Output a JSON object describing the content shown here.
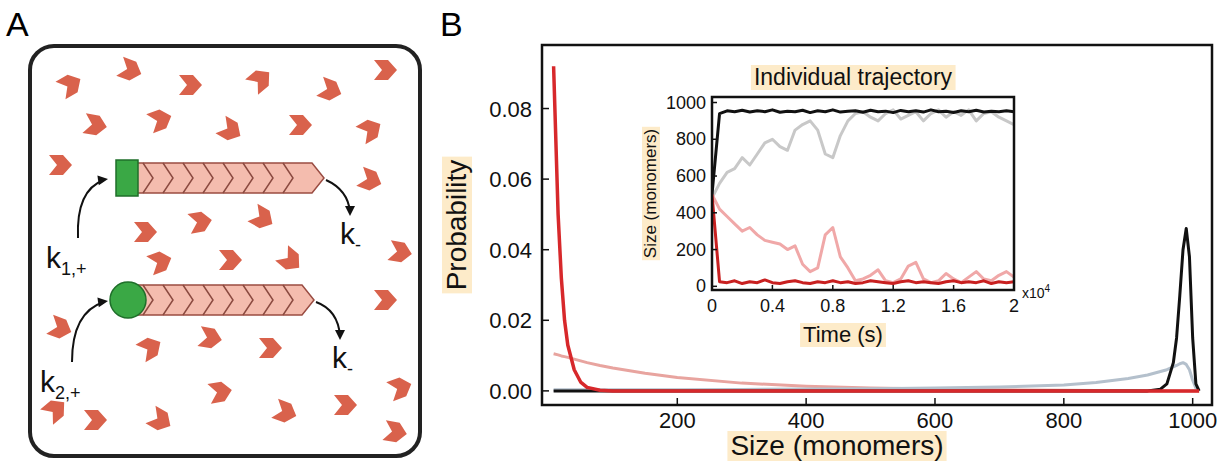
{
  "panel_a": {
    "letter": "A",
    "rates": [
      {
        "base": "k",
        "sub": "1,+"
      },
      {
        "base": "k",
        "sub": "-"
      },
      {
        "base": "k",
        "sub": "2,+"
      },
      {
        "base": "k",
        "sub": "-"
      }
    ]
  },
  "chart_data": [
    {
      "type": "line",
      "panel_label": "B",
      "x_label": "Size (monomers)",
      "y_label": "Probability",
      "x": [
        8,
        15,
        20,
        25,
        30,
        40,
        50,
        60,
        80,
        100,
        150,
        200,
        300,
        400,
        500,
        600,
        700,
        800,
        850,
        900,
        930,
        950,
        960,
        970,
        975,
        980,
        985,
        990,
        995,
        1000,
        1005,
        1010
      ],
      "series": [
        {
          "color": "#e8a49f",
          "values": [
            0.0105,
            0.0102,
            0.0099,
            0.0097,
            0.0095,
            0.009,
            0.0085,
            0.008,
            0.0072,
            0.0065,
            0.005,
            0.0038,
            0.0022,
            0.0013,
            0.0008,
            0.0005,
            0.0003,
            0.0002,
            0.0001,
            0.0001,
            0,
            0,
            0,
            0,
            0,
            0,
            0,
            0,
            0,
            0,
            0,
            0
          ]
        },
        {
          "color": "#b4c0cc",
          "values": [
            0.0003,
            0.0003,
            0.0003,
            0.0003,
            0.0003,
            0.0003,
            0.0003,
            0.0003,
            0.0003,
            0.0003,
            0.0003,
            0.0003,
            0.0004,
            0.0005,
            0.0006,
            0.0008,
            0.0011,
            0.0017,
            0.0024,
            0.0035,
            0.0045,
            0.0055,
            0.006,
            0.0068,
            0.0072,
            0.0077,
            0.008,
            0.0075,
            0.006,
            0.003,
            0.0008,
            0
          ]
        },
        {
          "color": "#111111",
          "values": [
            0,
            0,
            0,
            0,
            0,
            0,
            0,
            0,
            0,
            0,
            0,
            0,
            0,
            0,
            0,
            0,
            0,
            0,
            0,
            0,
            0,
            0.0005,
            0.002,
            0.008,
            0.015,
            0.027,
            0.04,
            0.046,
            0.038,
            0.015,
            0.002,
            0
          ]
        },
        {
          "color": "#d7282b",
          "values": [
            0.092,
            0.05,
            0.032,
            0.02,
            0.013,
            0.006,
            0.0025,
            0.001,
            0.0002,
            0,
            0,
            0,
            0,
            0,
            0,
            0,
            0,
            0,
            0,
            0,
            0,
            0,
            0,
            0,
            0,
            0,
            0,
            0,
            0,
            0,
            0,
            0
          ]
        }
      ],
      "xlim": [
        -10,
        1030
      ],
      "ylim": [
        -0.004,
        0.098
      ],
      "xticks": [
        200,
        400,
        600,
        800,
        1000
      ],
      "yticks": [
        {
          "value": 0,
          "label": "0.00"
        },
        {
          "value": 0.02,
          "label": "0.02"
        },
        {
          "value": 0.04,
          "label": "0.04"
        },
        {
          "value": 0.06,
          "label": "0.06"
        },
        {
          "value": 0.08,
          "label": "0.08"
        }
      ]
    },
    {
      "type": "line",
      "title": "Individual trajectory",
      "x_label": "Time (s)",
      "y_label": "Size (monomers)",
      "x_scale": {
        "text": "x10",
        "superscript": "4"
      },
      "x": [
        0,
        0.05,
        0.1,
        0.15,
        0.2,
        0.25,
        0.3,
        0.35,
        0.4,
        0.45,
        0.5,
        0.55,
        0.6,
        0.65,
        0.7,
        0.75,
        0.8,
        0.85,
        0.9,
        0.95,
        1.0,
        1.05,
        1.1,
        1.15,
        1.2,
        1.25,
        1.3,
        1.35,
        1.4,
        1.45,
        1.5,
        1.55,
        1.6,
        1.65,
        1.7,
        1.75,
        1.8,
        1.85,
        1.9,
        1.95,
        2.0
      ],
      "series": [
        {
          "color": "#c8c8c8",
          "values": [
            480,
            560,
            620,
            640,
            700,
            660,
            720,
            780,
            800,
            760,
            740,
            850,
            880,
            900,
            850,
            720,
            700,
            820,
            900,
            940,
            950,
            920,
            900,
            940,
            960,
            910,
            930,
            950,
            900,
            940,
            960,
            920,
            950,
            930,
            960,
            900,
            940,
            950,
            920,
            900,
            880
          ]
        },
        {
          "color": "#f0a8a8",
          "values": [
            500,
            420,
            380,
            340,
            300,
            320,
            280,
            250,
            240,
            230,
            200,
            220,
            120,
            80,
            100,
            280,
            320,
            160,
            100,
            30,
            40,
            60,
            90,
            30,
            20,
            40,
            110,
            130,
            40,
            20,
            30,
            70,
            40,
            20,
            50,
            80,
            40,
            30,
            60,
            80,
            50
          ]
        },
        {
          "color": "#c82020",
          "values": [
            500,
            25,
            20,
            30,
            15,
            25,
            20,
            35,
            20,
            15,
            25,
            30,
            20,
            15,
            25,
            20,
            30,
            20,
            25,
            15,
            20,
            30,
            25,
            20,
            15,
            25,
            30,
            20,
            25,
            20,
            15,
            25,
            30,
            20,
            25,
            20,
            30,
            15,
            25,
            20,
            25
          ]
        },
        {
          "color": "#111111",
          "values": [
            500,
            940,
            955,
            950,
            958,
            948,
            955,
            950,
            960,
            947,
            953,
            950,
            958,
            945,
            955,
            950,
            960,
            948,
            952,
            955,
            947,
            958,
            950,
            953,
            945,
            957,
            950,
            955,
            948,
            960,
            950,
            952,
            946,
            955,
            950,
            958,
            948,
            953,
            950,
            955,
            950
          ]
        }
      ],
      "xlim": [
        0,
        2
      ],
      "ylim": [
        -20,
        1030
      ],
      "xticks": [
        0,
        0.4,
        0.8,
        1.2,
        1.6,
        2
      ],
      "yticks": [
        0,
        200,
        400,
        600,
        800,
        1000
      ]
    }
  ]
}
